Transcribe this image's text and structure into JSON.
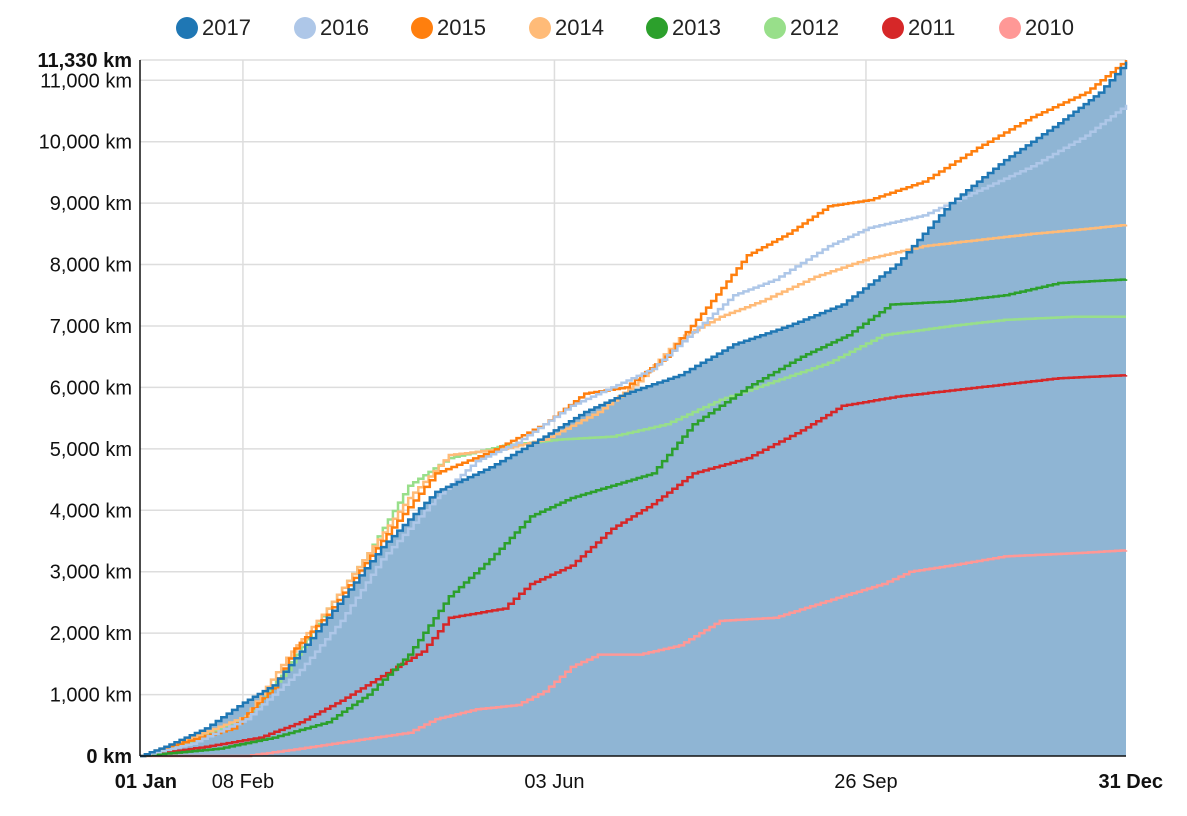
{
  "chart_data": {
    "type": "line",
    "title": "",
    "xlabel": "",
    "ylabel": "",
    "x_unit": "day of year",
    "xlim": [
      1,
      365
    ],
    "ylim": [
      0,
      11330
    ],
    "y_max_label": "11,330 km",
    "y_ticks": [
      {
        "value": 0,
        "label": "0 km",
        "bold": true
      },
      {
        "value": 1000,
        "label": "1,000 km"
      },
      {
        "value": 2000,
        "label": "2,000 km"
      },
      {
        "value": 3000,
        "label": "3,000 km"
      },
      {
        "value": 4000,
        "label": "4,000 km"
      },
      {
        "value": 5000,
        "label": "5,000 km"
      },
      {
        "value": 6000,
        "label": "6,000 km"
      },
      {
        "value": 7000,
        "label": "7,000 km"
      },
      {
        "value": 8000,
        "label": "8,000 km"
      },
      {
        "value": 9000,
        "label": "9,000 km"
      },
      {
        "value": 10000,
        "label": "10,000 km"
      },
      {
        "value": 11000,
        "label": "11,000 km"
      },
      {
        "value": 11330,
        "label": "11,330 km",
        "bold": true
      }
    ],
    "x_ticks": [
      {
        "value": 1,
        "label": "01 Jan",
        "bold": true
      },
      {
        "value": 39,
        "label": "08 Feb"
      },
      {
        "value": 154,
        "label": "03 Jun"
      },
      {
        "value": 269,
        "label": "26 Sep"
      },
      {
        "value": 365,
        "label": "31 Dec",
        "bold": true
      }
    ],
    "grid": true,
    "legend_position": "top",
    "area_series": "2017",
    "area_color": "#8fb5d4",
    "series": [
      {
        "name": "2017",
        "color": "#1f77b4",
        "points": [
          [
            1,
            0
          ],
          [
            10,
            150
          ],
          [
            25,
            450
          ],
          [
            39,
            870
          ],
          [
            50,
            1150
          ],
          [
            70,
            2250
          ],
          [
            90,
            3400
          ],
          [
            110,
            4300
          ],
          [
            130,
            4700
          ],
          [
            150,
            5200
          ],
          [
            165,
            5600
          ],
          [
            180,
            5900
          ],
          [
            200,
            6200
          ],
          [
            220,
            6700
          ],
          [
            240,
            7000
          ],
          [
            260,
            7350
          ],
          [
            280,
            8000
          ],
          [
            300,
            9000
          ],
          [
            320,
            9700
          ],
          [
            340,
            10300
          ],
          [
            355,
            10800
          ],
          [
            365,
            11300
          ]
        ]
      },
      {
        "name": "2016",
        "color": "#aec7e8",
        "points": [
          [
            1,
            0
          ],
          [
            20,
            200
          ],
          [
            40,
            600
          ],
          [
            60,
            1400
          ],
          [
            75,
            2200
          ],
          [
            90,
            3200
          ],
          [
            110,
            4200
          ],
          [
            125,
            4800
          ],
          [
            140,
            5100
          ],
          [
            160,
            5700
          ],
          [
            175,
            6000
          ],
          [
            190,
            6300
          ],
          [
            205,
            6900
          ],
          [
            220,
            7500
          ],
          [
            235,
            7750
          ],
          [
            255,
            8300
          ],
          [
            270,
            8600
          ],
          [
            290,
            8800
          ],
          [
            310,
            9200
          ],
          [
            330,
            9600
          ],
          [
            350,
            10100
          ],
          [
            365,
            10600
          ]
        ]
      },
      {
        "name": "2015",
        "color": "#ff7f0e",
        "points": [
          [
            1,
            0
          ],
          [
            15,
            200
          ],
          [
            35,
            450
          ],
          [
            50,
            1100
          ],
          [
            58,
            1750
          ],
          [
            70,
            2300
          ],
          [
            90,
            3500
          ],
          [
            110,
            4600
          ],
          [
            130,
            4950
          ],
          [
            150,
            5400
          ],
          [
            165,
            5900
          ],
          [
            180,
            6000
          ],
          [
            195,
            6500
          ],
          [
            210,
            7300
          ],
          [
            225,
            8150
          ],
          [
            240,
            8500
          ],
          [
            255,
            8950
          ],
          [
            270,
            9050
          ],
          [
            290,
            9350
          ],
          [
            310,
            9900
          ],
          [
            330,
            10400
          ],
          [
            350,
            10800
          ],
          [
            365,
            11330
          ]
        ]
      },
      {
        "name": "2014",
        "color": "#ffbb78",
        "points": [
          [
            1,
            0
          ],
          [
            20,
            300
          ],
          [
            40,
            650
          ],
          [
            55,
            1600
          ],
          [
            70,
            2400
          ],
          [
            85,
            3300
          ],
          [
            100,
            4200
          ],
          [
            115,
            4900
          ],
          [
            135,
            5000
          ],
          [
            150,
            5150
          ],
          [
            170,
            5600
          ],
          [
            185,
            6100
          ],
          [
            200,
            6800
          ],
          [
            215,
            7150
          ],
          [
            230,
            7400
          ],
          [
            250,
            7800
          ],
          [
            270,
            8100
          ],
          [
            290,
            8300
          ],
          [
            310,
            8400
          ],
          [
            330,
            8500
          ],
          [
            350,
            8580
          ],
          [
            365,
            8650
          ]
        ]
      },
      {
        "name": "2013",
        "color": "#2ca02c",
        "points": [
          [
            1,
            0
          ],
          [
            30,
            120
          ],
          [
            50,
            300
          ],
          [
            70,
            550
          ],
          [
            85,
            1000
          ],
          [
            100,
            1650
          ],
          [
            115,
            2600
          ],
          [
            130,
            3200
          ],
          [
            145,
            3900
          ],
          [
            160,
            4200
          ],
          [
            175,
            4400
          ],
          [
            190,
            4600
          ],
          [
            205,
            5400
          ],
          [
            225,
            6000
          ],
          [
            245,
            6500
          ],
          [
            262,
            6850
          ],
          [
            278,
            7350
          ],
          [
            300,
            7400
          ],
          [
            320,
            7500
          ],
          [
            340,
            7700
          ],
          [
            365,
            7760
          ]
        ]
      },
      {
        "name": "2012",
        "color": "#98df8a",
        "points": [
          [
            1,
            0
          ],
          [
            20,
            250
          ],
          [
            40,
            650
          ],
          [
            55,
            1400
          ],
          [
            70,
            2400
          ],
          [
            85,
            3300
          ],
          [
            100,
            4400
          ],
          [
            115,
            4850
          ],
          [
            135,
            5050
          ],
          [
            155,
            5150
          ],
          [
            175,
            5200
          ],
          [
            195,
            5400
          ],
          [
            215,
            5800
          ],
          [
            235,
            6100
          ],
          [
            255,
            6400
          ],
          [
            275,
            6850
          ],
          [
            300,
            7000
          ],
          [
            320,
            7100
          ],
          [
            345,
            7150
          ],
          [
            365,
            7150
          ]
        ]
      },
      {
        "name": "2011",
        "color": "#d62728",
        "points": [
          [
            1,
            0
          ],
          [
            25,
            150
          ],
          [
            45,
            300
          ],
          [
            60,
            550
          ],
          [
            75,
            900
          ],
          [
            90,
            1300
          ],
          [
            105,
            1700
          ],
          [
            115,
            2250
          ],
          [
            135,
            2400
          ],
          [
            145,
            2800
          ],
          [
            160,
            3100
          ],
          [
            175,
            3700
          ],
          [
            190,
            4100
          ],
          [
            205,
            4600
          ],
          [
            225,
            4850
          ],
          [
            245,
            5300
          ],
          [
            260,
            5700
          ],
          [
            280,
            5850
          ],
          [
            300,
            5950
          ],
          [
            320,
            6050
          ],
          [
            340,
            6150
          ],
          [
            365,
            6200
          ]
        ]
      },
      {
        "name": "2010",
        "color": "#ff9896",
        "points": [
          [
            1,
            0
          ],
          [
            40,
            0
          ],
          [
            60,
            120
          ],
          [
            80,
            250
          ],
          [
            100,
            380
          ],
          [
            110,
            600
          ],
          [
            125,
            760
          ],
          [
            140,
            830
          ],
          [
            150,
            1050
          ],
          [
            160,
            1450
          ],
          [
            170,
            1650
          ],
          [
            185,
            1650
          ],
          [
            200,
            1800
          ],
          [
            215,
            2200
          ],
          [
            235,
            2250
          ],
          [
            260,
            2600
          ],
          [
            275,
            2800
          ],
          [
            285,
            3000
          ],
          [
            300,
            3100
          ],
          [
            320,
            3250
          ],
          [
            345,
            3300
          ],
          [
            365,
            3350
          ]
        ]
      }
    ]
  }
}
